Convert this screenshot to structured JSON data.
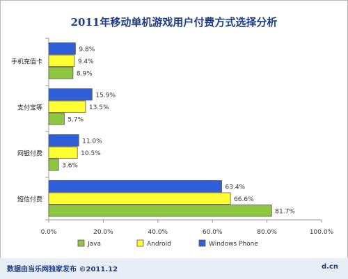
{
  "chart_data": {
    "type": "bar",
    "orientation": "horizontal",
    "title": "2011年移动单机游戏用户付费方式选择分析",
    "categories": [
      "手机充值卡",
      "支付宝等",
      "网银付费",
      "短信付费"
    ],
    "series": [
      {
        "name": "Windows Phone",
        "color": "#2e5fd8",
        "values": [
          9.8,
          15.9,
          11.0,
          63.4
        ],
        "labels": [
          "9.8%",
          "15.9%",
          "11.0%",
          "63.4%"
        ]
      },
      {
        "name": "Android",
        "color": "#ffff33",
        "values": [
          9.4,
          13.5,
          10.5,
          66.6
        ],
        "labels": [
          "9.4%",
          "13.5%",
          "10.5%",
          "66.6%"
        ]
      },
      {
        "name": "Java",
        "color": "#8ec63f",
        "values": [
          8.9,
          5.7,
          3.6,
          81.7
        ],
        "labels": [
          "8.9%",
          "5.7%",
          "3.6%",
          "81.7%"
        ]
      }
    ],
    "legend_order": [
      "Java",
      "Android",
      "Windows Phone"
    ],
    "xlim": [
      0,
      100
    ],
    "xticks": [
      "0.0%",
      "20.0%",
      "40.0%",
      "60.0%",
      "80.0%",
      "100.0%"
    ],
    "legend_position": "bottom",
    "grid": false
  },
  "footer": {
    "source": "数据由当乐网独家发布  ©2011.12",
    "site": "d.cn"
  }
}
